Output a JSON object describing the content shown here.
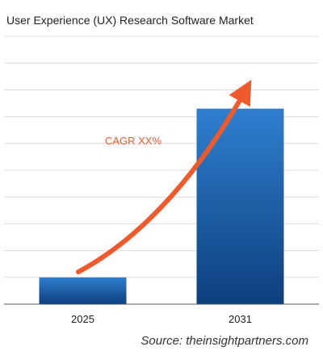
{
  "chart_data": {
    "type": "bar",
    "title": "User Experience (UX) Research Software Market",
    "categories": [
      "2025",
      "2031"
    ],
    "values": [
      1,
      7.3
    ],
    "ylim": [
      0,
      10
    ],
    "grid": true,
    "annotation": {
      "text": "CAGR XX%",
      "kind": "growth-arrow"
    },
    "source": "Source: theinsightpartners.com"
  },
  "colors": {
    "bar_top": "#2f7fcf",
    "bar_bottom": "#0d3f7d",
    "arrow": "#ee5a2c",
    "annotation_text": "#ee5a2c",
    "grid": "#dcdcdc",
    "axis": "#555555"
  }
}
